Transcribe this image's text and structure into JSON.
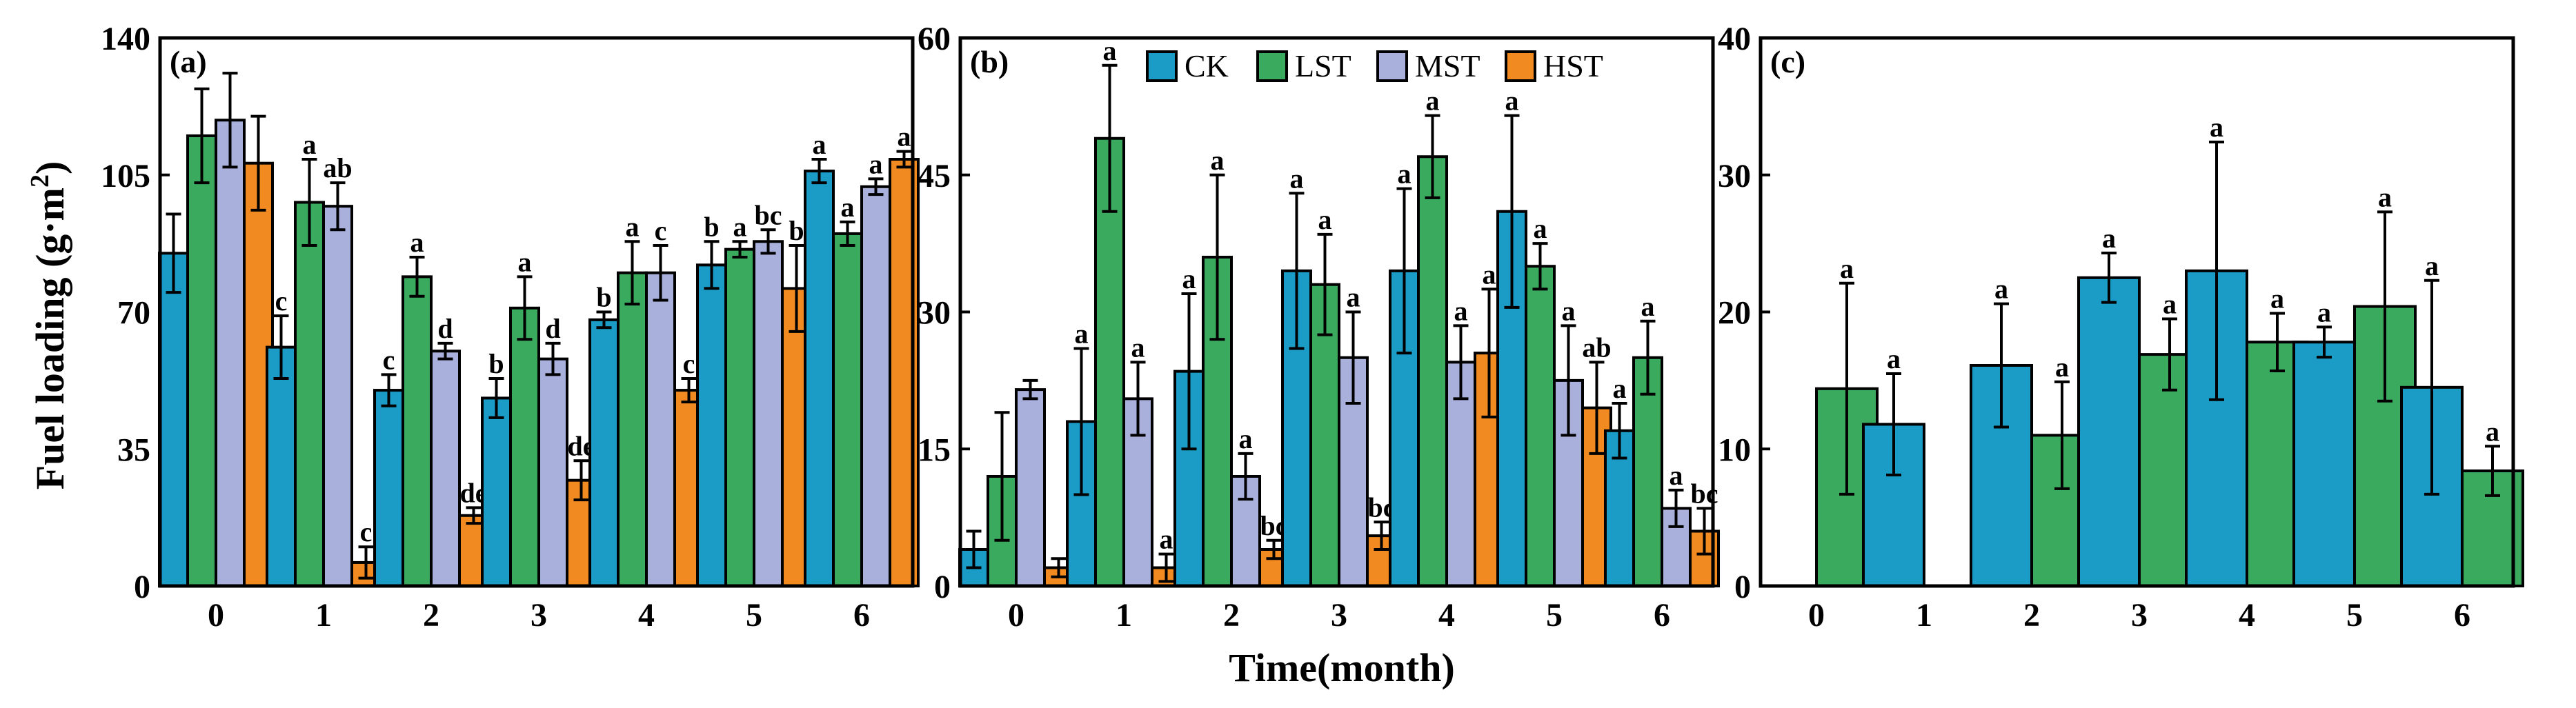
{
  "y_axis_title": "Fuel loading (g·m",
  "y_axis_title_sup": "2",
  "y_axis_title_close": ")",
  "x_axis_title": "Time(month)",
  "colors": {
    "CK": "#1a9cc7",
    "LST": "#3aaa5f",
    "MST": "#a9b0dc",
    "HST": "#f28a22"
  },
  "legend": [
    "CK",
    "LST",
    "MST",
    "HST"
  ],
  "chart_data": [
    {
      "type": "bar",
      "panel_label": "(a)",
      "categories": [
        "0",
        "1",
        "2",
        "3",
        "4",
        "5",
        "6"
      ],
      "ylim": [
        0,
        140
      ],
      "yticks": [
        "0",
        "35",
        "70",
        "105",
        "140"
      ],
      "xlabel": "Time(month)",
      "ylabel": "Fuel loading (g·m2)",
      "series": [
        {
          "name": "CK",
          "values": [
            85,
            61,
            50,
            48,
            68,
            82,
            106
          ],
          "errors": [
            10,
            8,
            4,
            5,
            2,
            6,
            3
          ],
          "labels": [
            "",
            "c",
            "c",
            "b",
            "b",
            "b",
            "a"
          ]
        },
        {
          "name": "LST",
          "values": [
            115,
            98,
            79,
            71,
            80,
            86,
            90
          ],
          "errors": [
            12,
            11,
            5,
            8,
            8,
            2,
            3
          ],
          "labels": [
            "",
            "a",
            "a",
            "a",
            "a",
            "a",
            "a"
          ]
        },
        {
          "name": "MST",
          "values": [
            119,
            97,
            60,
            58,
            80,
            88,
            102
          ],
          "errors": [
            12,
            6,
            2,
            4,
            7,
            3,
            2
          ],
          "labels": [
            "",
            "ab",
            "d",
            "d",
            "c",
            "bc",
            "a"
          ]
        },
        {
          "name": "HST",
          "values": [
            108,
            6,
            18,
            27,
            50,
            76,
            109
          ],
          "errors": [
            12,
            4,
            2,
            5,
            3,
            11,
            2
          ],
          "labels": [
            "",
            "c",
            "de",
            "de",
            "c",
            "b",
            "a"
          ]
        }
      ]
    },
    {
      "type": "bar",
      "panel_label": "(b)",
      "categories": [
        "0",
        "1",
        "2",
        "3",
        "4",
        "5",
        "6"
      ],
      "ylim": [
        0,
        60
      ],
      "yticks": [
        "0",
        "15",
        "30",
        "45",
        "60"
      ],
      "xlabel": "Time(month)",
      "ylabel": "",
      "series": [
        {
          "name": "CK",
          "values": [
            4,
            18,
            23.5,
            34.5,
            34.5,
            41,
            17
          ],
          "errors": [
            2,
            8,
            8.5,
            8.5,
            9,
            10.5,
            3
          ],
          "labels": [
            "",
            "a",
            "a",
            "a",
            "a",
            "a",
            "a"
          ]
        },
        {
          "name": "LST",
          "values": [
            12,
            49,
            36,
            33,
            47,
            35,
            25
          ],
          "errors": [
            7,
            8,
            9,
            5.5,
            4.5,
            2.5,
            4
          ],
          "labels": [
            "",
            "a",
            "a",
            "a",
            "a",
            "a",
            "a"
          ]
        },
        {
          "name": "MST",
          "values": [
            21.5,
            20.5,
            12,
            25,
            24.5,
            22.5,
            8.5
          ],
          "errors": [
            1,
            4,
            2.5,
            5,
            4,
            6,
            2
          ],
          "labels": [
            "",
            "a",
            "a",
            "a",
            "a",
            "a",
            "a"
          ]
        },
        {
          "name": "HST",
          "values": [
            2,
            2,
            4,
            5.5,
            25.5,
            19.5,
            6
          ],
          "errors": [
            1,
            1.5,
            1,
            1.5,
            7,
            5,
            2.5
          ],
          "labels": [
            "",
            "a",
            "bc",
            "bc",
            "a",
            "ab",
            "bc"
          ]
        }
      ]
    },
    {
      "type": "bar",
      "panel_label": "(c)",
      "categories": [
        "0",
        "1",
        "2",
        "3",
        "4",
        "5",
        "6"
      ],
      "ylim": [
        0,
        40
      ],
      "yticks": [
        "0",
        "10",
        "20",
        "30",
        "40"
      ],
      "xlabel": "Time(month)",
      "ylabel": "",
      "series": [
        {
          "name": "CK",
          "values": [
            null,
            11.8,
            16.1,
            22.5,
            23,
            17.8,
            14.5
          ],
          "errors": [
            null,
            3.7,
            4.5,
            1.8,
            9.4,
            1.1,
            7.8
          ],
          "labels": [
            "",
            "a",
            "a",
            "a",
            "a",
            "a",
            "a"
          ]
        },
        {
          "name": "LST",
          "values": [
            14.4,
            null,
            11,
            16.9,
            17.8,
            20.4,
            8.4
          ],
          "errors": [
            7.7,
            null,
            3.9,
            2.6,
            2.1,
            6.9,
            1.8
          ],
          "labels": [
            "a",
            "",
            "a",
            "a",
            "a",
            "a",
            "a"
          ]
        }
      ]
    }
  ]
}
